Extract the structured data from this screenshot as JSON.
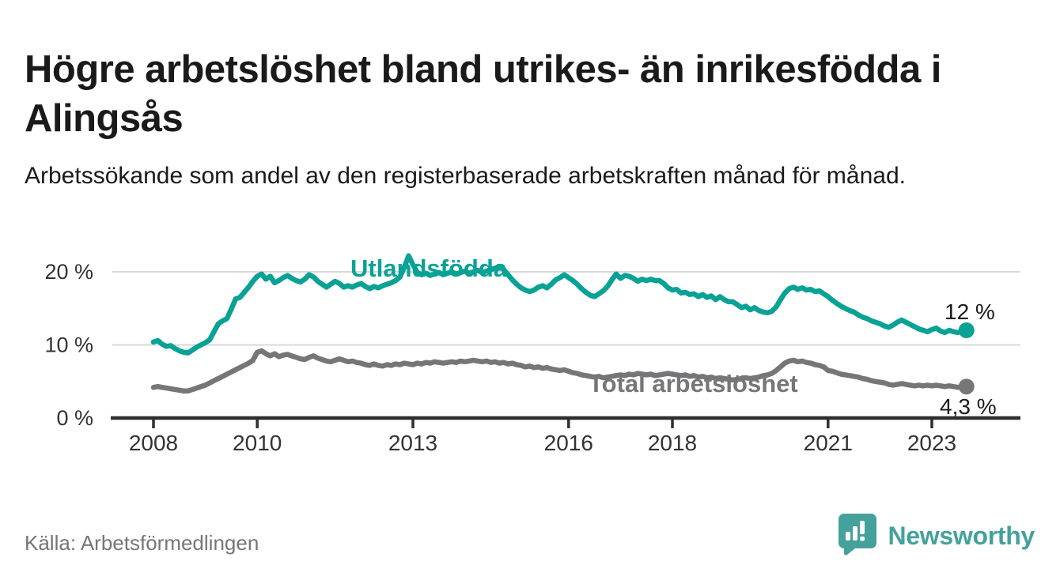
{
  "header": {
    "title": "Högre arbetslöshet bland utrikes- än inrikesfödda i Alingsås",
    "subtitle": "Arbetssökande som andel av den registerbaserade arbetskraften månad för månad."
  },
  "footer": {
    "source": "Källa: Arbetsförmedlingen",
    "brand_name": "Newsworthy",
    "brand_icon": "bar-chart-speech-bubble-icon"
  },
  "colors": {
    "foreign_born_line": "#09a295",
    "total_line": "#767679",
    "grid": "#d9d9d9",
    "axis": "#2e2e2e",
    "tick_text": "#333333",
    "end_label_text": "#1a1a1a",
    "brand_teal": "#44a19b",
    "source_text": "#75757a"
  },
  "chart_data": {
    "type": "line",
    "title": "Högre arbetslöshet bland utrikes- än inrikesfödda i Alingsås",
    "subtitle": "Arbetssökande som andel av den registerbaserade arbetskraften månad för månad.",
    "unit": "%",
    "x_start_year": 2008,
    "x_start_month": 1,
    "x_frequency": "monthly",
    "x_end_year": 2023,
    "x_end_month": 9,
    "xlim": [
      2007.2,
      2024.7
    ],
    "ylim": [
      0,
      24
    ],
    "grid": "horizontal-only",
    "y_ticks": [
      {
        "value": 0,
        "label": "0 %"
      },
      {
        "value": 10,
        "label": "10 %"
      },
      {
        "value": 20,
        "label": "20 %"
      }
    ],
    "x_ticks": [
      {
        "year": 2008,
        "label": "2008"
      },
      {
        "year": 2010,
        "label": "2010"
      },
      {
        "year": 2013,
        "label": "2013"
      },
      {
        "year": 2016,
        "label": "2016"
      },
      {
        "year": 2018,
        "label": "2018"
      },
      {
        "year": 2021,
        "label": "2021"
      },
      {
        "year": 2023,
        "label": "2023"
      }
    ],
    "legend_position": "inline-labels-on-chart",
    "series": [
      {
        "name": "Utlandsfödda",
        "color": "#09a295",
        "end_label": "12 %",
        "last_value": 12.0,
        "values": [
          10.4,
          10.6,
          10.1,
          9.8,
          9.9,
          9.5,
          9.2,
          9.0,
          8.9,
          9.3,
          9.7,
          10.0,
          10.3,
          10.7,
          11.8,
          12.9,
          13.3,
          13.6,
          14.9,
          16.3,
          16.5,
          17.2,
          17.9,
          18.7,
          19.4,
          19.7,
          19.0,
          19.4,
          18.5,
          18.8,
          19.2,
          19.5,
          19.1,
          18.8,
          18.6,
          19.0,
          19.6,
          19.3,
          18.7,
          18.3,
          17.9,
          18.3,
          18.7,
          18.4,
          17.9,
          18.1,
          17.9,
          18.2,
          18.4,
          18.0,
          17.7,
          18.0,
          17.8,
          18.1,
          18.3,
          18.5,
          18.8,
          19.3,
          20.6,
          22.2,
          21.0,
          19.9,
          19.6,
          19.8,
          19.5,
          19.7,
          19.9,
          19.6,
          19.8,
          20.0,
          19.7,
          19.9,
          20.1,
          19.8,
          20.0,
          20.2,
          19.9,
          20.1,
          20.3,
          20.5,
          20.7,
          20.3,
          19.6,
          18.9,
          18.3,
          17.8,
          17.5,
          17.3,
          17.5,
          17.9,
          18.1,
          17.8,
          18.3,
          18.9,
          19.2,
          19.6,
          19.2,
          18.8,
          18.3,
          17.7,
          17.2,
          16.8,
          16.6,
          17.0,
          17.4,
          18.0,
          18.9,
          19.7,
          19.1,
          19.5,
          19.4,
          19.1,
          18.7,
          19.0,
          18.8,
          19.0,
          18.8,
          18.8,
          18.4,
          17.8,
          17.5,
          17.6,
          17.1,
          17.2,
          16.9,
          17.0,
          16.6,
          16.9,
          16.5,
          16.7,
          16.2,
          16.6,
          16.2,
          15.9,
          15.9,
          15.5,
          15.1,
          15.3,
          14.8,
          15.1,
          14.7,
          14.5,
          14.4,
          14.6,
          15.2,
          16.2,
          17.1,
          17.7,
          17.9,
          17.6,
          17.8,
          17.5,
          17.6,
          17.3,
          17.4,
          17.0,
          16.6,
          16.1,
          15.7,
          15.3,
          15.0,
          14.7,
          14.5,
          14.1,
          13.8,
          13.6,
          13.3,
          13.1,
          12.9,
          12.6,
          12.4,
          12.7,
          13.1,
          13.4,
          13.1,
          12.8,
          12.5,
          12.2,
          12.0,
          11.8,
          12.1,
          12.3,
          11.9,
          11.7,
          12.0,
          11.8,
          11.7,
          11.9,
          12.0
        ]
      },
      {
        "name": "Total arbetslöshet",
        "color": "#767679",
        "end_label": "4,3 %",
        "last_value": 4.3,
        "values": [
          4.2,
          4.3,
          4.2,
          4.1,
          4.0,
          3.9,
          3.8,
          3.7,
          3.7,
          3.9,
          4.1,
          4.3,
          4.5,
          4.8,
          5.1,
          5.4,
          5.7,
          6.0,
          6.3,
          6.6,
          6.9,
          7.2,
          7.5,
          7.9,
          9.0,
          9.2,
          8.8,
          8.5,
          8.8,
          8.4,
          8.6,
          8.7,
          8.5,
          8.3,
          8.1,
          8.0,
          8.3,
          8.5,
          8.2,
          8.0,
          7.8,
          7.7,
          7.9,
          8.1,
          7.9,
          7.7,
          7.8,
          7.6,
          7.5,
          7.3,
          7.2,
          7.4,
          7.2,
          7.1,
          7.3,
          7.2,
          7.4,
          7.3,
          7.5,
          7.4,
          7.3,
          7.5,
          7.4,
          7.6,
          7.5,
          7.7,
          7.6,
          7.5,
          7.6,
          7.7,
          7.6,
          7.8,
          7.7,
          7.8,
          7.9,
          7.8,
          7.7,
          7.8,
          7.6,
          7.7,
          7.5,
          7.6,
          7.4,
          7.5,
          7.3,
          7.2,
          7.0,
          7.1,
          6.9,
          7.0,
          6.8,
          6.9,
          6.7,
          6.6,
          6.5,
          6.6,
          6.4,
          6.2,
          6.1,
          5.9,
          5.8,
          5.7,
          5.6,
          5.7,
          5.5,
          5.6,
          5.7,
          5.8,
          5.9,
          5.8,
          6.0,
          5.9,
          6.1,
          6.0,
          5.9,
          6.0,
          5.8,
          5.9,
          6.0,
          6.1,
          6.0,
          5.9,
          5.8,
          5.9,
          5.7,
          5.8,
          5.6,
          5.7,
          5.5,
          5.6,
          5.4,
          5.5,
          5.4,
          5.3,
          5.2,
          5.3,
          5.4,
          5.5,
          5.4,
          5.5,
          5.6,
          5.8,
          5.9,
          6.1,
          6.5,
          7.0,
          7.5,
          7.8,
          7.9,
          7.7,
          7.8,
          7.6,
          7.5,
          7.3,
          7.2,
          7.0,
          6.5,
          6.4,
          6.2,
          6.0,
          5.9,
          5.8,
          5.7,
          5.6,
          5.4,
          5.3,
          5.1,
          5.0,
          4.9,
          4.8,
          4.6,
          4.5,
          4.6,
          4.7,
          4.6,
          4.5,
          4.4,
          4.5,
          4.4,
          4.5,
          4.4,
          4.5,
          4.4,
          4.3,
          4.4,
          4.3,
          4.2,
          4.3,
          4.3
        ]
      }
    ]
  }
}
